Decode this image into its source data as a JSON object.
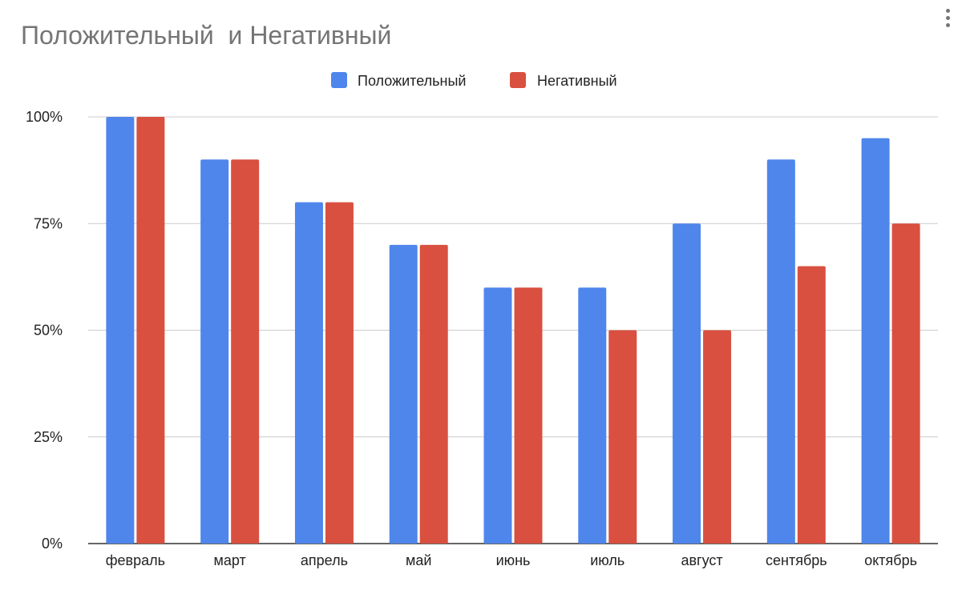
{
  "menu": {
    "icon": "more-vert-icon"
  },
  "chart_data": {
    "type": "bar",
    "title": "Положительный  и Негативный",
    "categories": [
      "февраль",
      "март",
      "апрель",
      "май",
      "июнь",
      "июль",
      "август",
      "сентябрь",
      "октябрь"
    ],
    "series": [
      {
        "name": "Положительный",
        "color": "#4f86ec",
        "values": [
          100,
          90,
          80,
          70,
          60,
          60,
          75,
          90,
          95
        ]
      },
      {
        "name": "Негативный",
        "color": "#d95040",
        "values": [
          100,
          90,
          80,
          70,
          60,
          50,
          50,
          65,
          75
        ]
      }
    ],
    "y_ticks": [
      0,
      25,
      50,
      75,
      100
    ],
    "y_tick_labels": [
      "0%",
      "25%",
      "50%",
      "75%",
      "100%"
    ],
    "ylim": [
      0,
      100
    ],
    "grid": true,
    "legend_position": "top-center"
  }
}
